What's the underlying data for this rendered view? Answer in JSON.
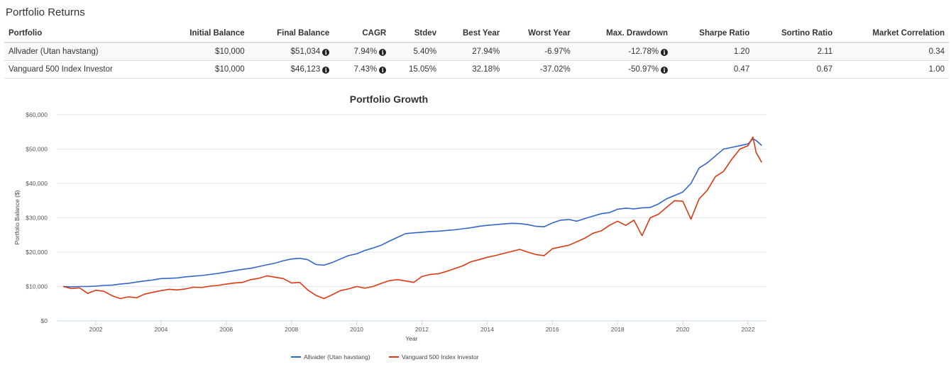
{
  "page_title": "Portfolio Returns",
  "table": {
    "headers": [
      "Portfolio",
      "Initial Balance",
      "Final Balance",
      "CAGR",
      "Stdev",
      "Best Year",
      "Worst Year",
      "Max. Drawdown",
      "Sharpe Ratio",
      "Sortino Ratio",
      "Market Correlation"
    ],
    "rows": [
      {
        "portfolio": "Allvader (Utan havstang)",
        "initial": "$10,000",
        "final": "$51,034",
        "cagr": "7.94%",
        "stdev": "5.40%",
        "best": "27.94%",
        "worst": "-6.97%",
        "drawdown": "-12.78%",
        "sharpe": "1.20",
        "sortino": "2.11",
        "correlation": "0.34"
      },
      {
        "portfolio": "Vanguard 500 Index Investor",
        "initial": "$10,000",
        "final": "$46,123",
        "cagr": "7.43%",
        "stdev": "15.05%",
        "best": "32.18%",
        "worst": "-37.02%",
        "drawdown": "-50.97%",
        "sharpe": "0.47",
        "sortino": "0.67",
        "correlation": "1.00"
      }
    ],
    "info_icon": "info-circle-icon"
  },
  "chart_data": {
    "type": "line",
    "title": "Portfolio Growth",
    "xlabel": "Year",
    "ylabel": "Portfolio Balance ($)",
    "xlim": [
      2001.0,
      2022.42
    ],
    "ylim": [
      0,
      60000
    ],
    "x_ticks": [
      "2002",
      "2004",
      "2006",
      "2008",
      "2010",
      "2012",
      "2014",
      "2016",
      "2018",
      "2020",
      "2022"
    ],
    "y_ticks": [
      "$0",
      "$10,000",
      "$20,000",
      "$30,000",
      "$40,000",
      "$50,000",
      "$60,000"
    ],
    "grid": true,
    "legend_position": "bottom",
    "x": [
      2001.0,
      2001.25,
      2001.5,
      2001.75,
      2002.0,
      2002.25,
      2002.5,
      2002.75,
      2003.0,
      2003.25,
      2003.5,
      2003.75,
      2004.0,
      2004.25,
      2004.5,
      2004.75,
      2005.0,
      2005.25,
      2005.5,
      2005.75,
      2006.0,
      2006.25,
      2006.5,
      2006.75,
      2007.0,
      2007.25,
      2007.5,
      2007.75,
      2008.0,
      2008.25,
      2008.5,
      2008.75,
      2009.0,
      2009.25,
      2009.5,
      2009.75,
      2010.0,
      2010.25,
      2010.5,
      2010.75,
      2011.0,
      2011.25,
      2011.5,
      2011.75,
      2012.0,
      2012.25,
      2012.5,
      2012.75,
      2013.0,
      2013.25,
      2013.5,
      2013.75,
      2014.0,
      2014.25,
      2014.5,
      2014.75,
      2015.0,
      2015.25,
      2015.5,
      2015.75,
      2016.0,
      2016.25,
      2016.5,
      2016.75,
      2017.0,
      2017.25,
      2017.5,
      2017.75,
      2018.0,
      2018.25,
      2018.5,
      2018.75,
      2019.0,
      2019.25,
      2019.5,
      2019.75,
      2020.0,
      2020.25,
      2020.5,
      2020.75,
      2021.0,
      2021.25,
      2021.5,
      2021.75,
      2022.0,
      2022.15,
      2022.25,
      2022.42
    ],
    "series": [
      {
        "name": "Allvader (Utan havstang)",
        "color": "#3366cc",
        "values": [
          10000,
          9900,
          10000,
          10000,
          10100,
          10300,
          10400,
          10700,
          10900,
          11300,
          11600,
          11900,
          12300,
          12400,
          12500,
          12800,
          13000,
          13200,
          13500,
          13800,
          14200,
          14600,
          15000,
          15300,
          15800,
          16300,
          16800,
          17500,
          18000,
          18200,
          17800,
          16400,
          16200,
          17000,
          18000,
          19000,
          19500,
          20500,
          21200,
          22000,
          23200,
          24300,
          25400,
          25600,
          25800,
          26000,
          26100,
          26300,
          26500,
          26800,
          27100,
          27500,
          27800,
          28000,
          28200,
          28400,
          28300,
          28000,
          27500,
          27400,
          28500,
          29300,
          29500,
          29000,
          29800,
          30500,
          31200,
          31500,
          32500,
          32800,
          32600,
          32900,
          33000,
          34000,
          35500,
          36500,
          37500,
          40000,
          44500,
          46000,
          48000,
          50000,
          50500,
          51000,
          51500,
          53000,
          52500,
          51034
        ]
      },
      {
        "name": "Vanguard 500 Index Investor",
        "color": "#dc3912",
        "values": [
          10000,
          9400,
          9600,
          8000,
          8900,
          8600,
          7300,
          6500,
          7000,
          6700,
          7800,
          8300,
          8800,
          9200,
          9000,
          9300,
          9800,
          9700,
          10100,
          10300,
          10700,
          11000,
          11200,
          12000,
          12400,
          13100,
          12700,
          12300,
          11000,
          11200,
          9000,
          7400,
          6500,
          7600,
          8800,
          9300,
          10000,
          9500,
          10000,
          10900,
          11700,
          12000,
          11600,
          11200,
          12900,
          13500,
          13700,
          14400,
          15200,
          16000,
          17200,
          17800,
          18500,
          19000,
          19600,
          20200,
          20800,
          20000,
          19300,
          19000,
          21000,
          21500,
          22000,
          23000,
          24100,
          25500,
          26200,
          27800,
          29000,
          27800,
          29300,
          24800,
          30000,
          31000,
          33000,
          35000,
          34800,
          29600,
          35500,
          38000,
          42000,
          43500,
          47000,
          50000,
          51000,
          53500,
          49000,
          46123
        ]
      }
    ]
  }
}
